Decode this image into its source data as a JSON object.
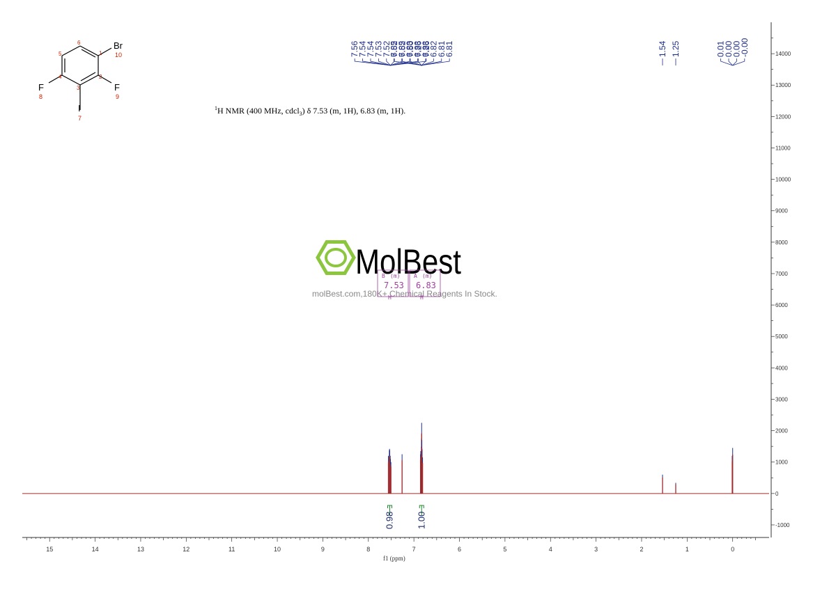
{
  "colors": {
    "spectrum": "#a52a2a",
    "peak_label": "#1f2f8a",
    "integral": "#1f8a2f",
    "atom_number": "#cc2200",
    "multiplet_box": "#a0409e",
    "logo_green": "#8cc63f",
    "logo_text": "#000000",
    "axis": "#333333"
  },
  "title": "1H NMR (400 MHz, cdcl3) δ 7.53 (m, 1H), 6.83 (m, 1H).",
  "title_parts": {
    "sup": "1",
    "main": "H NMR (400 MHz, cdcl",
    "sub": "3",
    "rest": ") δ 7.53 (m, 1H), 6.83 (m, 1H)."
  },
  "watermark": {
    "brand": "MolBest",
    "tagline": "molBest.com,180K+ Chemical Reagents In Stock."
  },
  "structure": {
    "atoms": [
      {
        "symbol": "Br",
        "number": "10"
      },
      {
        "symbol": "F",
        "number": "8"
      },
      {
        "symbol": "F",
        "number": "9"
      },
      {
        "symbol": "I",
        "number": "7"
      }
    ],
    "ring_numbers": [
      "1",
      "2",
      "3",
      "4",
      "5",
      "6"
    ]
  },
  "multiplets": [
    {
      "letter": "B",
      "type": "(m)",
      "shift": "7.53",
      "unit": "H"
    },
    {
      "letter": "A",
      "type": "(m)",
      "shift": "6.83",
      "unit": "H"
    }
  ],
  "chart_data": {
    "type": "line",
    "xlabel": "f1 (ppm)",
    "x_reversed": true,
    "xlim": [
      15.6,
      -0.8
    ],
    "ylim": [
      -1400,
      15000
    ],
    "x_ticks": [
      15,
      14,
      13,
      12,
      11,
      10,
      9,
      8,
      7,
      6,
      5,
      4,
      3,
      2,
      1,
      0
    ],
    "y_ticks": [
      -1000,
      0,
      1000,
      2000,
      3000,
      4000,
      5000,
      6000,
      7000,
      8000,
      9000,
      10000,
      11000,
      12000,
      13000,
      14000
    ],
    "peaks": [
      {
        "ppm": 7.56,
        "height": 1200
      },
      {
        "ppm": 7.54,
        "height": 1380
      },
      {
        "ppm": 7.535,
        "height": 1420
      },
      {
        "ppm": 7.53,
        "height": 1380
      },
      {
        "ppm": 7.52,
        "height": 1200
      },
      {
        "ppm": 7.515,
        "height": 1100
      },
      {
        "ppm": 7.505,
        "height": 1000
      },
      {
        "ppm": 7.26,
        "height": 1250
      },
      {
        "ppm": 6.855,
        "height": 1250
      },
      {
        "ppm": 6.85,
        "height": 1350
      },
      {
        "ppm": 6.835,
        "height": 1750
      },
      {
        "ppm": 6.83,
        "height": 2250
      },
      {
        "ppm": 6.825,
        "height": 1700
      },
      {
        "ppm": 6.82,
        "height": 1400
      },
      {
        "ppm": 6.81,
        "height": 1150
      },
      {
        "ppm": 1.54,
        "height": 600
      },
      {
        "ppm": 1.25,
        "height": 340
      },
      {
        "ppm": 0.01,
        "height": 1200
      },
      {
        "ppm": 0.0,
        "height": 1450
      }
    ],
    "peak_label_groups": [
      {
        "labels": [
          "7.56",
          "7.54",
          "7.54",
          "7.53",
          "7.52",
          "7.52",
          "7.52",
          "7.50",
          "7.26",
          "7.26"
        ],
        "ppm_range": [
          7.5,
          7.53
        ]
      },
      {
        "labels": [
          "6.85",
          "6.85",
          "6.83",
          "6.83",
          "6.83",
          "6.82",
          "6.81",
          "6.81"
        ],
        "ppm_range": [
          6.81,
          6.85
        ]
      },
      {
        "labels": [
          "1.54"
        ],
        "ppm_range": [
          1.54,
          1.54
        ]
      },
      {
        "labels": [
          "1.25"
        ],
        "ppm_range": [
          1.25,
          1.25
        ]
      },
      {
        "labels": [
          "0.01",
          "0.00",
          "0.00",
          "-0.00"
        ],
        "ppm_range": [
          0.0,
          0.0
        ]
      }
    ],
    "integrals": [
      {
        "ppm": 7.53,
        "value": "0.98"
      },
      {
        "ppm": 6.83,
        "value": "1.00"
      }
    ]
  }
}
